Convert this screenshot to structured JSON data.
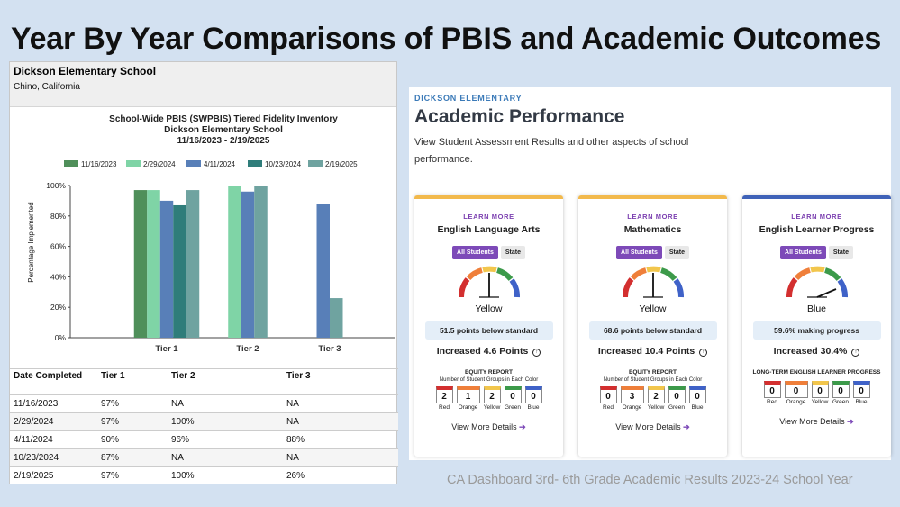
{
  "slide_title": "Year By Year Comparisons of PBIS and Academic Outcomes",
  "report": {
    "school": "Dickson Elementary School",
    "location": "Chino, California",
    "table_headers": [
      "Date Completed",
      "Tier 1",
      "Tier 2",
      "Tier 3"
    ],
    "rows": [
      [
        "11/16/2023",
        "97%",
        "NA",
        "NA"
      ],
      [
        "2/29/2024",
        "97%",
        "100%",
        "NA"
      ],
      [
        "4/11/2024",
        "90%",
        "96%",
        "88%"
      ],
      [
        "10/23/2024",
        "87%",
        "NA",
        "NA"
      ],
      [
        "2/19/2025",
        "97%",
        "100%",
        "26%"
      ]
    ]
  },
  "chart_data": {
    "type": "bar",
    "title": "School-Wide PBIS (SWPBIS) Tiered Fidelity Inventory",
    "subtitle": "Dickson Elementary School",
    "date_range": "11/16/2023 - 2/19/2025",
    "categories": [
      "Tier 1",
      "Tier 2",
      "Tier 3"
    ],
    "ylabel": "Percentage Implemented",
    "yticks": [
      "0%",
      "20%",
      "40%",
      "60%",
      "80%",
      "100%"
    ],
    "ylim": [
      0,
      100
    ],
    "legend_position": "top",
    "series": [
      {
        "name": "11/16/2023",
        "color": "#4f8f5a",
        "values": [
          97,
          null,
          null
        ]
      },
      {
        "name": "2/29/2024",
        "color": "#7fd4a6",
        "values": [
          97,
          100,
          null
        ]
      },
      {
        "name": "4/11/2024",
        "color": "#587fb8",
        "values": [
          90,
          96,
          88
        ]
      },
      {
        "name": "10/23/2024",
        "color": "#2f7d7a",
        "values": [
          87,
          null,
          null
        ]
      },
      {
        "name": "2/19/2025",
        "color": "#6fa3a0",
        "values": [
          97,
          100,
          26
        ]
      }
    ]
  },
  "perf": {
    "school": "DICKSON ELEMENTARY",
    "title": "Academic Performance",
    "description": "View Student Assessment Results and other aspects of school performance.",
    "learn_more": "LEARN MORE",
    "all_students": "All Students",
    "state": "State",
    "view_more": "View More Details",
    "arrow": "➔",
    "cards": [
      {
        "subject": "English Language Arts",
        "topbar_color": "#f2b94c",
        "needle": "up",
        "color_level": "Yellow",
        "points": "51.5 points below standard",
        "change": "Increased 4.6 Points",
        "equity_title": "EQUITY REPORT",
        "equity_sub": "Number of Student Groups in Each Color",
        "equity": [
          {
            "value": "2",
            "label": "Red",
            "color": "#d32f2f"
          },
          {
            "value": "1",
            "label": "Orange",
            "color": "#ef7f3a"
          },
          {
            "value": "2",
            "label": "Yellow",
            "color": "#f2c64c"
          },
          {
            "value": "0",
            "label": "Green",
            "color": "#3c9a4a"
          },
          {
            "value": "0",
            "label": "Blue",
            "color": "#3f62c8"
          }
        ]
      },
      {
        "subject": "Mathematics",
        "topbar_color": "#f2b94c",
        "needle": "up",
        "color_level": "Yellow",
        "points": "68.6 points below standard",
        "change": "Increased 10.4 Points",
        "equity_title": "EQUITY REPORT",
        "equity_sub": "Number of Student Groups in Each Color",
        "equity": [
          {
            "value": "0",
            "label": "Red",
            "color": "#d32f2f"
          },
          {
            "value": "3",
            "label": "Orange",
            "color": "#ef7f3a"
          },
          {
            "value": "2",
            "label": "Yellow",
            "color": "#f2c64c"
          },
          {
            "value": "0",
            "label": "Green",
            "color": "#3c9a4a"
          },
          {
            "value": "0",
            "label": "Blue",
            "color": "#3f62c8"
          }
        ]
      },
      {
        "subject": "English Learner Progress",
        "topbar_color": "#3f62b8",
        "needle": "right",
        "color_level": "Blue",
        "points": "59.6% making progress",
        "change": "Increased 30.4%",
        "equity_title": "LONG-TERM ENGLISH LEARNER PROGRESS",
        "equity_sub": "",
        "equity": [
          {
            "value": "0",
            "label": "Red",
            "color": "#d32f2f"
          },
          {
            "value": "0",
            "label": "Orange",
            "color": "#ef7f3a"
          },
          {
            "value": "0",
            "label": "Yellow",
            "color": "#f2c64c"
          },
          {
            "value": "0",
            "label": "Green",
            "color": "#3c9a4a"
          },
          {
            "value": "0",
            "label": "Blue",
            "color": "#3f62c8"
          }
        ]
      }
    ]
  },
  "footer": "CA Dashboard 3rd- 6th Grade Academic Results 2023-24 School Year"
}
